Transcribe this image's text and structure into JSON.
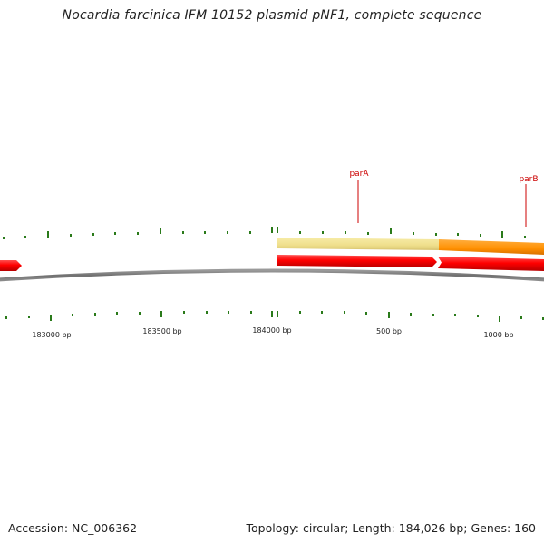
{
  "title": "Nocardia farcinica IFM 10152 plasmid pNF1, complete sequence",
  "accession_text": "Accession: NC_006362",
  "summary_text": "Topology: circular; Length: 184,026 bp; Genes: 160",
  "colors": {
    "backbone": "#7a7a7a",
    "cds_red": "#ff0000",
    "feature_tan": "#f0e090",
    "feature_orange": "#ff9000",
    "gene_label": "#cc0000",
    "tick": "#2a7a1a",
    "text": "#222222"
  },
  "position_labels": [
    "183000 bp",
    "183500 bp",
    "184000 bp",
    "500 bp",
    "1000 bp"
  ],
  "genes": [
    {
      "name": "parA"
    },
    {
      "name": "parB"
    }
  ]
}
